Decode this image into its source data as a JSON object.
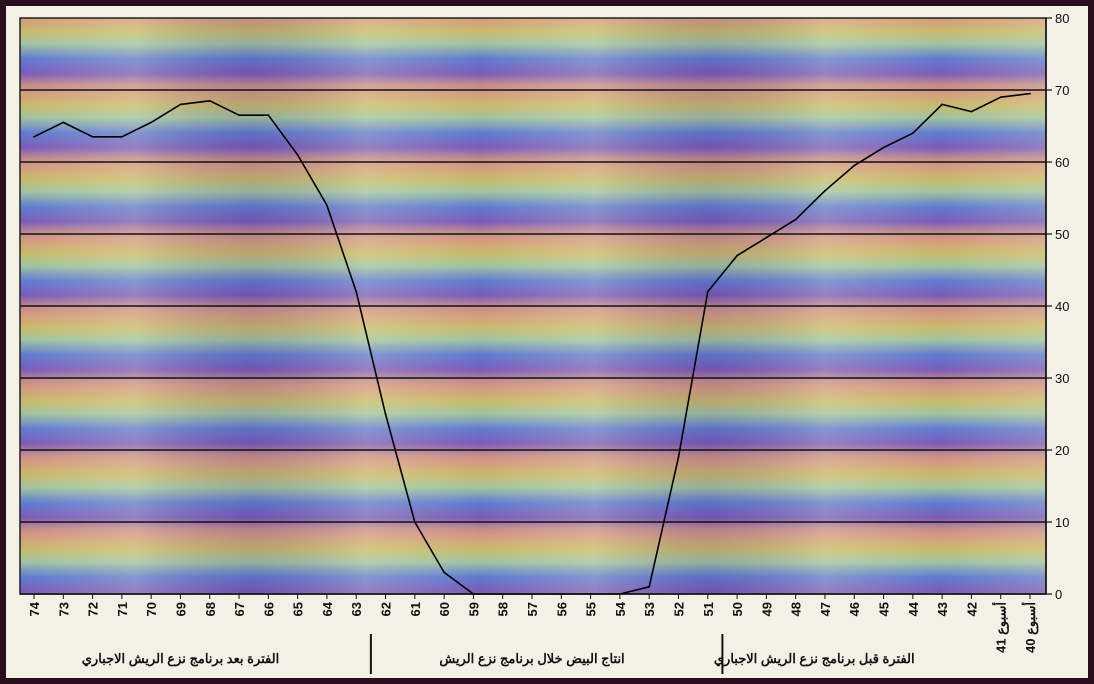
{
  "chart_data": {
    "type": "line",
    "x_axis_direction": "right-to-left",
    "y_axis_position": "right",
    "ylim": [
      0,
      80
    ],
    "yticks": [
      0,
      10,
      20,
      30,
      40,
      50,
      60,
      70,
      80
    ],
    "ytick_labels": [
      "0",
      "10",
      "20",
      "30",
      "40",
      "50",
      "60",
      "70",
      "80"
    ],
    "grid": true,
    "x": [
      40,
      41,
      42,
      43,
      44,
      45,
      46,
      47,
      48,
      49,
      50,
      51,
      52,
      53,
      54,
      55,
      56,
      57,
      58,
      59,
      60,
      61,
      62,
      63,
      64,
      65,
      66,
      67,
      68,
      69,
      70,
      71,
      72,
      73,
      74
    ],
    "xtick_labels": [
      "40 أسبوع",
      "41 أسبوع",
      "42",
      "43",
      "44",
      "45",
      "46",
      "47",
      "48",
      "49",
      "50",
      "51",
      "52",
      "53",
      "54",
      "55",
      "56",
      "57",
      "58",
      "59",
      "60",
      "61",
      "62",
      "63",
      "64",
      "65",
      "66",
      "67",
      "68",
      "69",
      "70",
      "71",
      "72",
      "73",
      "74"
    ],
    "series": [
      {
        "values": [
          69.5,
          69,
          67,
          68,
          64,
          62,
          59.5,
          56,
          52,
          49.5,
          47,
          42,
          19,
          1,
          0,
          0,
          0,
          0,
          0,
          0,
          3,
          10,
          25,
          42,
          54,
          61,
          66.5,
          66.5,
          68.5,
          68,
          65.5,
          63.5,
          63.5,
          65.5,
          63.5
        ],
        "color": "#000000"
      }
    ],
    "period_labels": [
      "الفترة قبل برنامج نزع الريش الاجباري",
      "انتاج البيض خلال برنامج نزع الريش",
      "الفترة بعد برنامج نزع الريش الاجباري"
    ]
  }
}
